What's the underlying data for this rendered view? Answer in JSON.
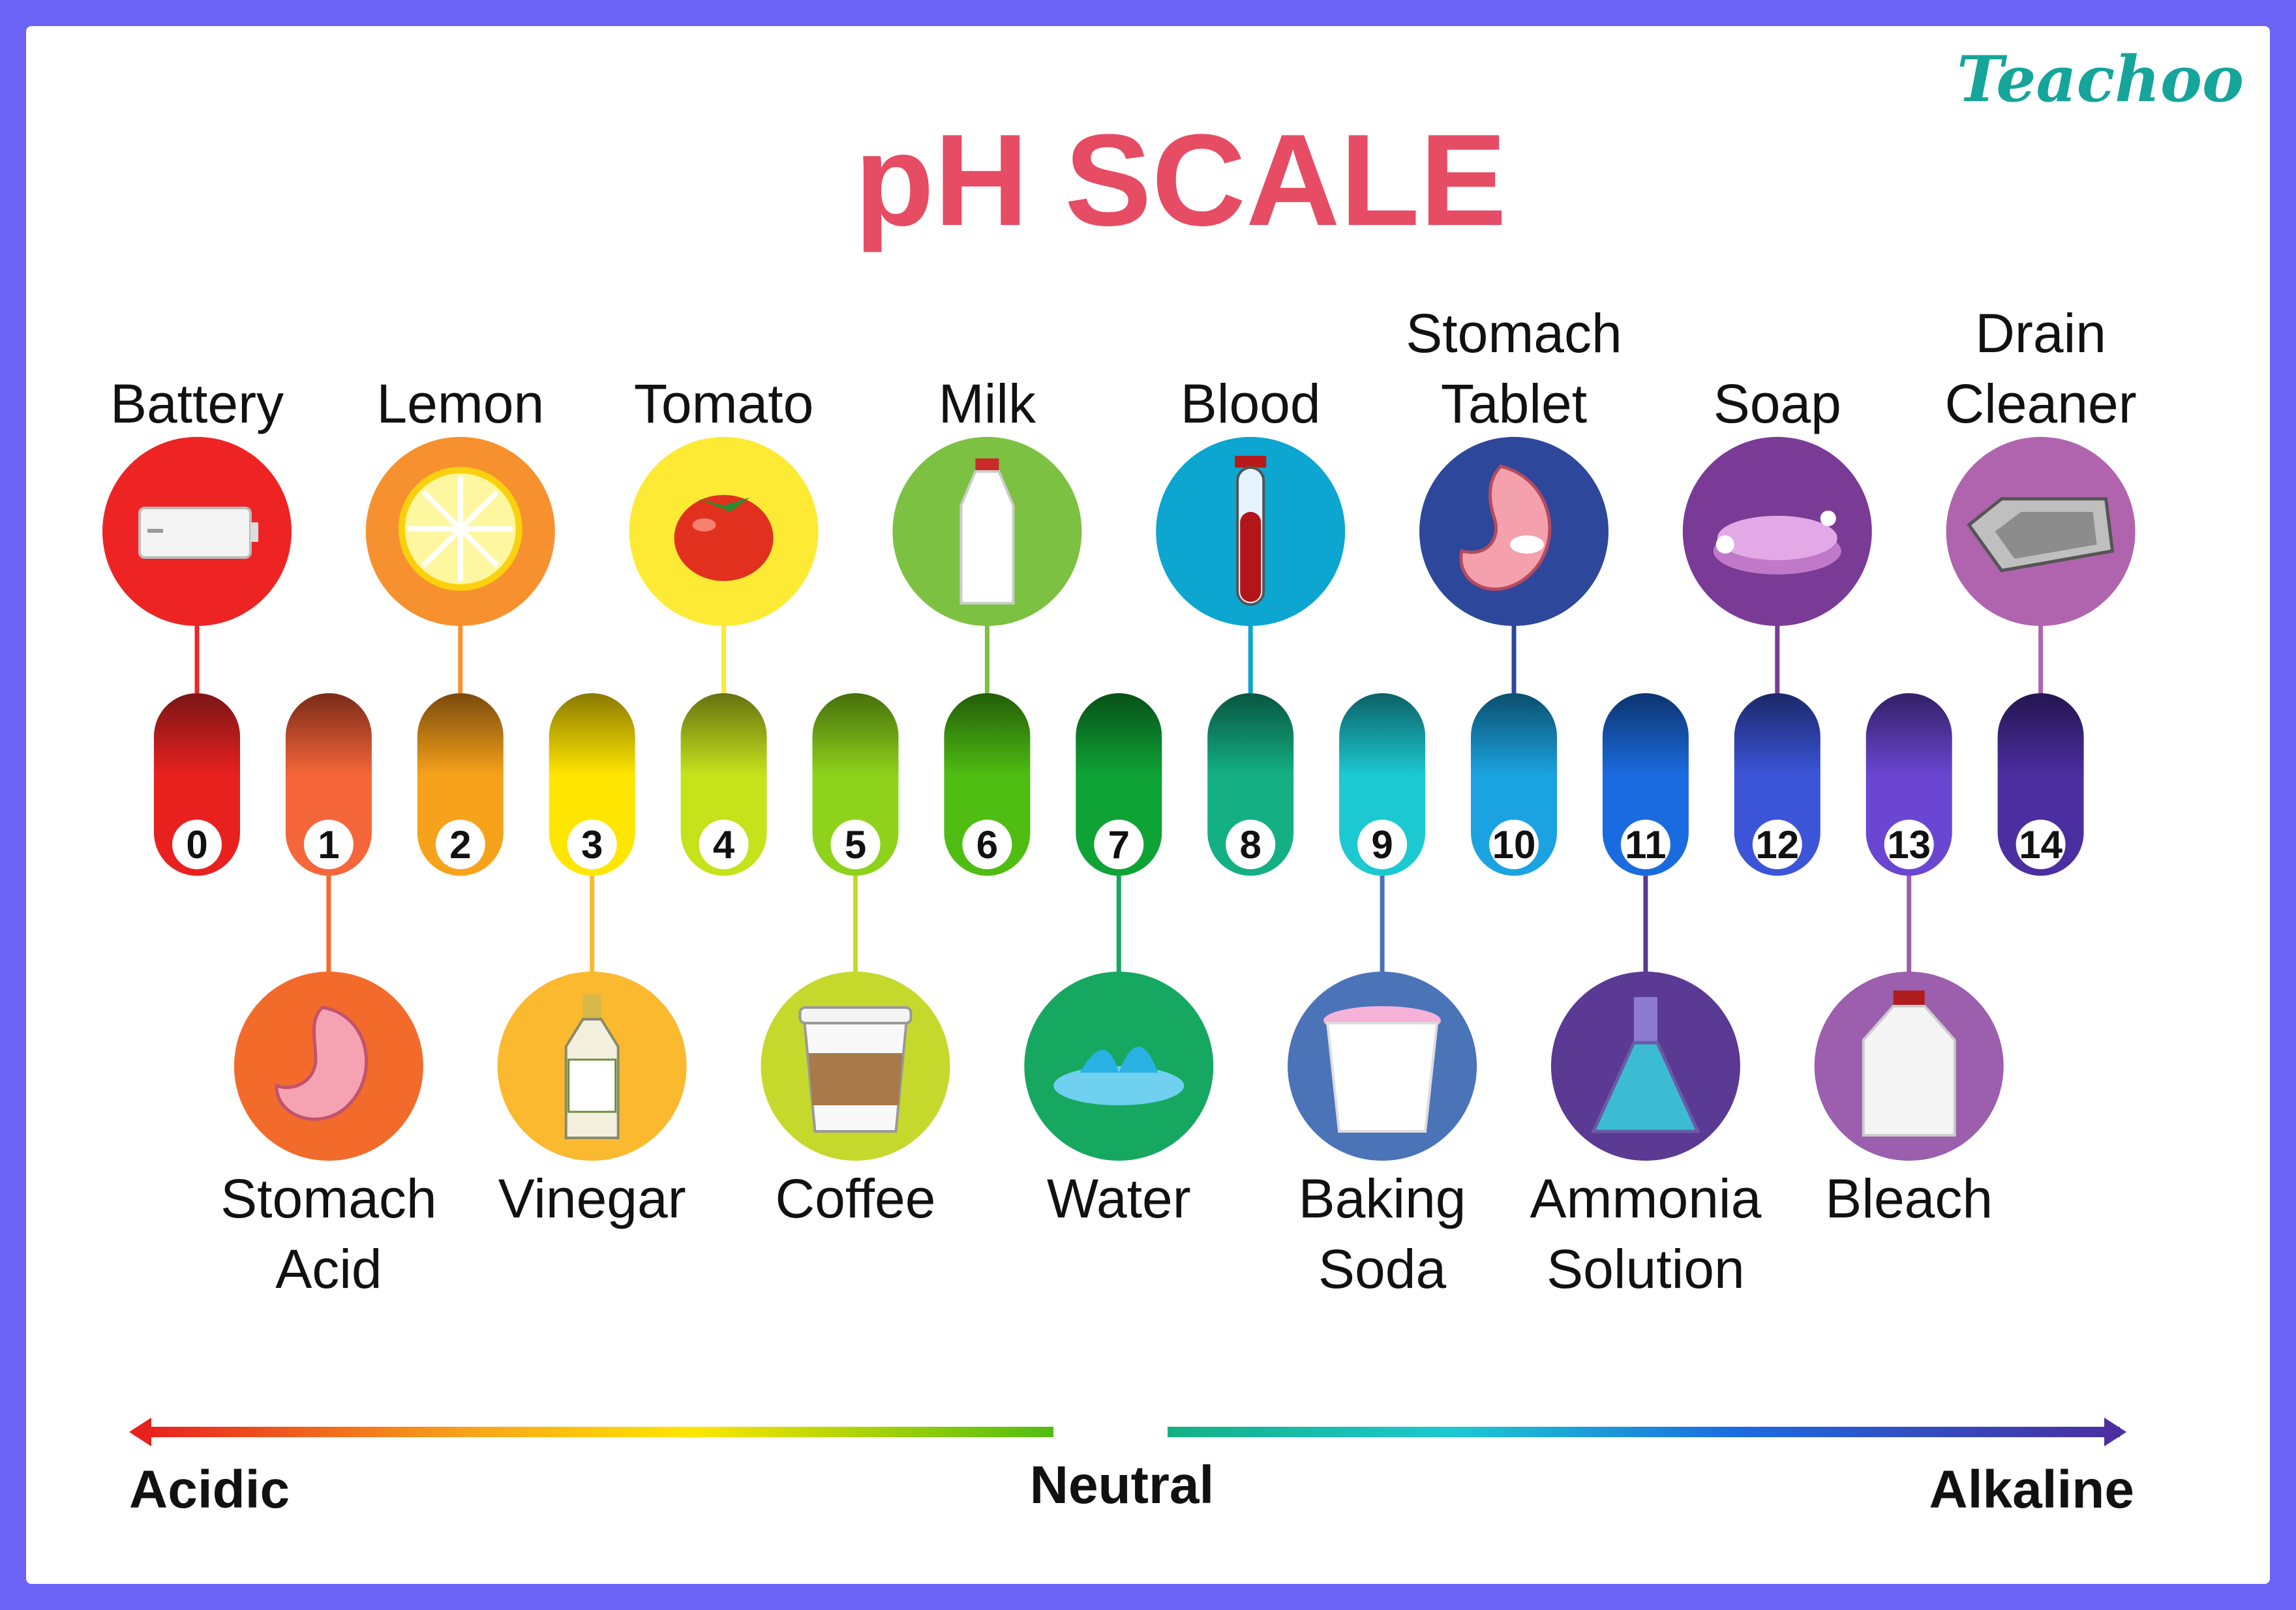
{
  "title": "pH SCALE",
  "brand": "Teachoo",
  "scale": [
    {
      "ph": "0",
      "color": "#e8211f",
      "top": "#7a1515",
      "label": [
        "Battery"
      ],
      "pos": "top",
      "circle": "#ee2424",
      "icon": "battery-icon"
    },
    {
      "ph": "1",
      "color": "#f5663a",
      "top": "#7a2a18",
      "label": [
        "Stomach",
        "Acid"
      ],
      "pos": "bottom",
      "circle": "#f26b2b",
      "icon": "stomach-icon"
    },
    {
      "ph": "2",
      "color": "#f7a21b",
      "top": "#7a4a0c",
      "label": [
        "Lemon"
      ],
      "pos": "top",
      "circle": "#f7912f",
      "icon": "lemon-icon"
    },
    {
      "ph": "3",
      "color": "#ffe600",
      "top": "#8a7a00",
      "label": [
        "Vinegar"
      ],
      "pos": "bottom",
      "circle": "#fbb92f",
      "icon": "vinegar-bottle-icon"
    },
    {
      "ph": "4",
      "color": "#c6e21b",
      "top": "#667210",
      "label": [
        "Tomato"
      ],
      "pos": "top",
      "circle": "#fdea35",
      "icon": "tomato-icon"
    },
    {
      "ph": "5",
      "color": "#8fd21b",
      "top": "#46700c",
      "label": [
        "Coffee"
      ],
      "pos": "bottom",
      "circle": "#c5d92d",
      "icon": "coffee-cup-icon"
    },
    {
      "ph": "6",
      "color": "#4fbd12",
      "top": "#235c08",
      "label": [
        "Milk"
      ],
      "pos": "top",
      "circle": "#7cc142",
      "icon": "milk-bottle-icon"
    },
    {
      "ph": "7",
      "color": "#0fa336",
      "top": "#065017",
      "label": [
        "Water"
      ],
      "pos": "bottom",
      "circle": "#16a860",
      "icon": "water-splash-icon"
    },
    {
      "ph": "8",
      "color": "#14b083",
      "top": "#08563f",
      "label": [
        "Blood"
      ],
      "pos": "top",
      "circle": "#0ca6d0",
      "icon": "blood-tube-icon"
    },
    {
      "ph": "9",
      "color": "#1cc9d1",
      "top": "#0b6166",
      "label": [
        "Baking",
        "Soda"
      ],
      "pos": "bottom",
      "circle": "#4a73b8",
      "icon": "baking-soda-icon"
    },
    {
      "ph": "10",
      "color": "#1aa3e0",
      "top": "#0b4e6e",
      "label": [
        "Stomach",
        "Tablet"
      ],
      "pos": "top",
      "circle": "#2d479a",
      "icon": "stomach-tablet-icon"
    },
    {
      "ph": "11",
      "color": "#1b6be0",
      "top": "#0c346e",
      "label": [
        "Ammonia",
        "Solution"
      ],
      "pos": "bottom",
      "circle": "#5a3a92",
      "icon": "flask-icon"
    },
    {
      "ph": "12",
      "color": "#3c54d8",
      "top": "#1b2868",
      "label": [
        "Soap"
      ],
      "pos": "top",
      "circle": "#7a3b96",
      "icon": "soap-icon"
    },
    {
      "ph": "13",
      "color": "#6a46d2",
      "top": "#322066",
      "label": [
        "Bleach"
      ],
      "pos": "bottom",
      "circle": "#9b5fae",
      "icon": "bleach-jug-icon"
    },
    {
      "ph": "14",
      "color": "#4b2ea0",
      "top": "#231550",
      "label": [
        "Drain",
        "Cleaner"
      ],
      "pos": "top",
      "circle": "#b064ae",
      "icon": "sink-icon"
    }
  ],
  "axis": {
    "acidic": "Acidic",
    "neutral": "Neutral",
    "alkaline": "Alkaline"
  }
}
